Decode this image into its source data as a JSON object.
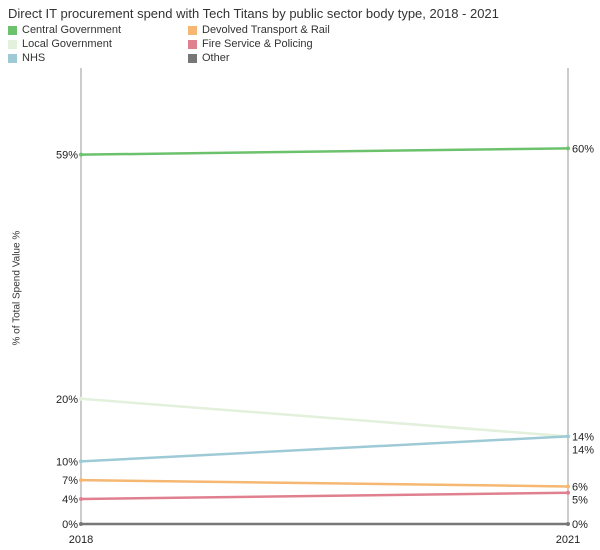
{
  "chart_data": {
    "type": "line",
    "title": "Direct IT procurement spend with Tech Titans by public sector body type, 2018 - 2021",
    "ylabel": "% of Total Spend Value %",
    "x": [
      "2018",
      "2021"
    ],
    "series": [
      {
        "name": "Central Government",
        "color": "#6cc16c",
        "values": [
          59,
          60
        ],
        "labels": [
          "59%",
          "60%"
        ]
      },
      {
        "name": "Local Government",
        "color": "#e2f0dc",
        "values": [
          20,
          14
        ],
        "labels": [
          "20%",
          "14%"
        ]
      },
      {
        "name": "NHS",
        "color": "#9ecad6",
        "values": [
          10,
          14
        ],
        "labels": [
          "10%",
          "14%"
        ]
      },
      {
        "name": "Devolved Transport & Rail",
        "color": "#f5b772",
        "values": [
          7,
          6
        ],
        "labels": [
          "7%",
          "6%"
        ]
      },
      {
        "name": "Fire Service & Policing",
        "color": "#e0808f",
        "values": [
          4,
          5
        ],
        "labels": [
          "4%",
          "5%"
        ]
      },
      {
        "name": "Other",
        "color": "#777777",
        "values": [
          0,
          0
        ],
        "labels": [
          "0%",
          "0%"
        ]
      }
    ]
  }
}
